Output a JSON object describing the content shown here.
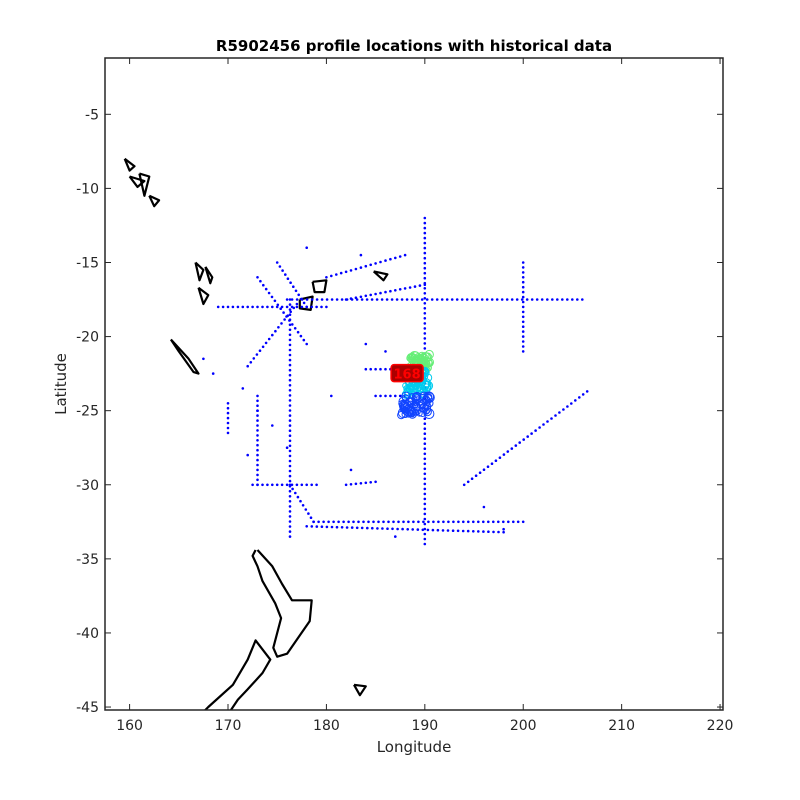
{
  "chart_data": {
    "type": "scatter",
    "title": "R5902456 profile locations with historical data",
    "xlabel": "Longitude",
    "ylabel": "Latitude",
    "xlim": [
      157.5,
      220.3
    ],
    "ylim": [
      -45.2,
      -1.2
    ],
    "xticks": [
      160,
      170,
      180,
      190,
      200,
      210,
      220
    ],
    "yticks": [
      -5,
      -10,
      -15,
      -20,
      -25,
      -30,
      -35,
      -40,
      -45
    ],
    "grid": false,
    "legend": "none",
    "colors": {
      "historical": "#0000ff",
      "coast": "#000000",
      "axis": "#262626"
    },
    "historical_tracks": [
      {
        "x": [
          190,
          190
        ],
        "y": [
          -12.0,
          -34.0
        ]
      },
      {
        "x": [
          176.0,
          206.0
        ],
        "y": [
          -17.5,
          -17.5
        ]
      },
      {
        "x": [
          176.3,
          176.3
        ],
        "y": [
          -17.5,
          -33.5
        ]
      },
      {
        "x": [
          178.7,
          200.0
        ],
        "y": [
          -32.5,
          -32.5
        ]
      },
      {
        "x": [
          200.0,
          200.0
        ],
        "y": [
          -15.0,
          -21.0
        ]
      },
      {
        "x": [
          172.5,
          179.0
        ],
        "y": [
          -30.0,
          -30.0
        ]
      },
      {
        "x": [
          176.3,
          178.7
        ],
        "y": [
          -30.0,
          -32.5
        ]
      },
      {
        "x": [
          172.0,
          177.0
        ],
        "y": [
          -22.0,
          -17.8
        ]
      },
      {
        "x": [
          169.0,
          180.0
        ],
        "y": [
          -18.0,
          -18.0
        ]
      },
      {
        "x": [
          182.0,
          190.0
        ],
        "y": [
          -17.5,
          -16.5
        ]
      },
      {
        "x": [
          194.0,
          206.5
        ],
        "y": [
          -30.0,
          -23.7
        ]
      },
      {
        "x": [
          173.0,
          178.0
        ],
        "y": [
          -16.0,
          -20.5
        ]
      },
      {
        "x": [
          175.0,
          178.0
        ],
        "y": [
          -15.0,
          -18.0
        ]
      },
      {
        "x": [
          180.0,
          188.0
        ],
        "y": [
          -16.0,
          -14.5
        ]
      },
      {
        "x": [
          184.0,
          188.0
        ],
        "y": [
          -22.2,
          -22.2
        ]
      },
      {
        "x": [
          185.0,
          188.0
        ],
        "y": [
          -24.0,
          -24.0
        ]
      },
      {
        "x": [
          182.0,
          185.0
        ],
        "y": [
          -30.0,
          -29.8
        ]
      },
      {
        "x": [
          170.0,
          170.0
        ],
        "y": [
          -24.5,
          -26.5
        ]
      },
      {
        "x": [
          173.0,
          173.0
        ],
        "y": [
          -24.0,
          -30.0
        ]
      },
      {
        "x": [
          178.0,
          198.0
        ],
        "y": [
          -32.8,
          -33.2
        ]
      }
    ],
    "historical_points": [
      {
        "x": [
          172.0,
          174.5,
          176.0,
          183.5,
          184.0,
          186.0,
          178.0,
          167.5,
          171.5,
          182.5,
          196.0,
          198.0,
          168.5,
          173.0,
          180.5,
          187.0
        ],
        "y": [
          -28.0,
          -26.0,
          -27.5,
          -14.5,
          -20.5,
          -21.0,
          -14.0,
          -21.5,
          -23.5,
          -29.0,
          -31.5,
          -33.0,
          -22.5,
          -25.0,
          -24.0,
          -33.5
        ]
      }
    ],
    "profile_clusters": [
      {
        "name": "green",
        "color": "#66ee77",
        "x": [
          188.5,
          190.5
        ],
        "y": [
          -21.2,
          -22.3
        ]
      },
      {
        "name": "cyan",
        "color": "#00ccee",
        "x": [
          188.0,
          190.5
        ],
        "y": [
          -22.3,
          -24.0
        ]
      },
      {
        "name": "blue",
        "color": "#1144ff",
        "x": [
          187.5,
          190.5
        ],
        "y": [
          -24.0,
          -25.3
        ]
      }
    ],
    "current_profile": {
      "label": "168",
      "x": 188.3,
      "y": -22.5,
      "color": "#ff0000",
      "fill": "#aa0000"
    },
    "coastlines": [
      {
        "x": [
          173.0,
          174.5,
          175.5,
          176.5,
          178.5,
          178.3,
          176.0,
          175.0,
          174.6,
          175.4,
          174.8,
          173.5,
          173.0,
          172.5,
          172.8
        ],
        "y": [
          -34.4,
          -35.5,
          -36.7,
          -37.8,
          -37.8,
          -39.2,
          -41.4,
          -41.6,
          -41.0,
          -39.0,
          -38.0,
          -36.5,
          -35.5,
          -34.8,
          -34.4
        ]
      },
      {
        "x": [
          166.5,
          168.0,
          170.5,
          172.0,
          172.8,
          174.3,
          173.5,
          172.0,
          171.0,
          170.0,
          168.5,
          167.0
        ],
        "y": [
          -46.0,
          -45.0,
          -43.5,
          -41.8,
          -40.5,
          -41.8,
          -42.7,
          -43.8,
          -44.5,
          -45.5,
          -46.5,
          -46.8
        ]
      },
      {
        "x": [
          164.2,
          166.0,
          167.0,
          166.5,
          165.0,
          164.2
        ],
        "y": [
          -20.2,
          -21.5,
          -22.5,
          -22.4,
          -21.0,
          -20.2
        ]
      },
      {
        "x": [
          166.7,
          167.5,
          167.1,
          166.7
        ],
        "y": [
          -15.0,
          -15.5,
          -16.2,
          -15.0
        ]
      },
      {
        "x": [
          167.7,
          168.4,
          168.2,
          167.7
        ],
        "y": [
          -15.3,
          -16.0,
          -16.4,
          -15.3
        ]
      },
      {
        "x": [
          167.0,
          168.0,
          167.5,
          167.0
        ],
        "y": [
          -16.7,
          -17.2,
          -17.8,
          -16.7
        ]
      },
      {
        "x": [
          177.3,
          178.6,
          178.4,
          177.3,
          177.3
        ],
        "y": [
          -17.5,
          -17.3,
          -18.2,
          -18.1,
          -17.5
        ]
      },
      {
        "x": [
          178.6,
          180.0,
          179.8,
          178.8,
          178.6
        ],
        "y": [
          -16.3,
          -16.2,
          -17.0,
          -17.0,
          -16.3
        ]
      },
      {
        "x": [
          159.5,
          160.5,
          160.0,
          159.5
        ],
        "y": [
          -8.0,
          -8.5,
          -8.8,
          -8.0
        ]
      },
      {
        "x": [
          160.0,
          161.5,
          160.8,
          160.0
        ],
        "y": [
          -9.2,
          -9.5,
          -9.9,
          -9.2
        ]
      },
      {
        "x": [
          161.0,
          162.0,
          161.5,
          161.0
        ],
        "y": [
          -9.0,
          -9.2,
          -10.5,
          -9.0
        ]
      },
      {
        "x": [
          162.0,
          163.0,
          162.5,
          162.0
        ],
        "y": [
          -10.5,
          -10.8,
          -11.2,
          -10.5
        ]
      },
      {
        "x": [
          184.8,
          186.2,
          185.8,
          184.8
        ],
        "y": [
          -15.6,
          -15.8,
          -16.2,
          -15.6
        ]
      },
      {
        "x": [
          182.8,
          184.0,
          183.4,
          182.8
        ],
        "y": [
          -43.5,
          -43.6,
          -44.2,
          -43.5
        ]
      }
    ]
  }
}
